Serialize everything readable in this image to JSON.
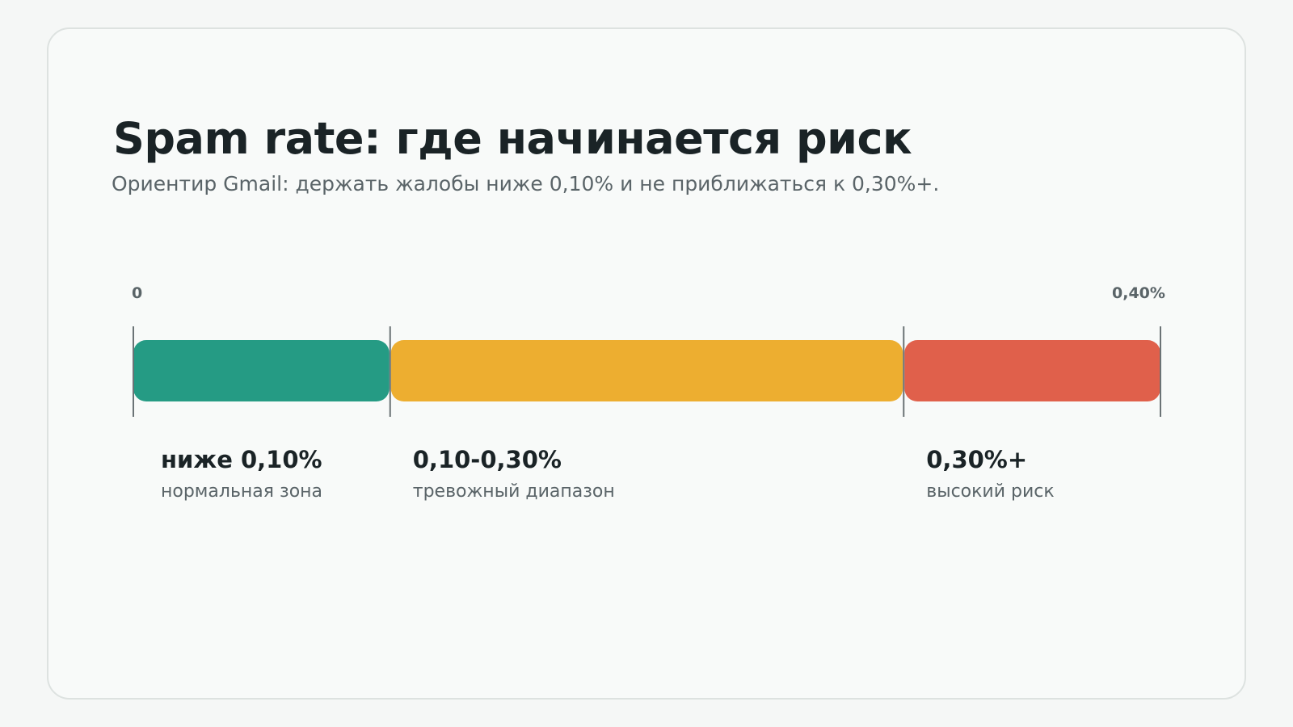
{
  "title": "Spam rate: где начинается риск",
  "subtitle": "Ориентир Gmail: держать жалобы ниже 0,10% и не приближаться к 0,30%+.",
  "scale": {
    "min_label": "0",
    "max_label": "0,40%",
    "min": 0,
    "max": 0.4
  },
  "zones": [
    {
      "from": 0,
      "to": 0.1,
      "value_label": "ниже 0,10%",
      "description": "нормальная зона",
      "color": "#259b84"
    },
    {
      "from": 0.1,
      "to": 0.3,
      "value_label": "0,10-0,30%",
      "description": "тревожный диапазон",
      "color": "#edae30"
    },
    {
      "from": 0.3,
      "to": 0.4,
      "value_label": "0,30%+",
      "description": "высокий риск",
      "color": "#e0604b"
    }
  ],
  "colors": {
    "tick": "#6b7376",
    "title": "#1a2326",
    "muted": "#5a6468"
  }
}
